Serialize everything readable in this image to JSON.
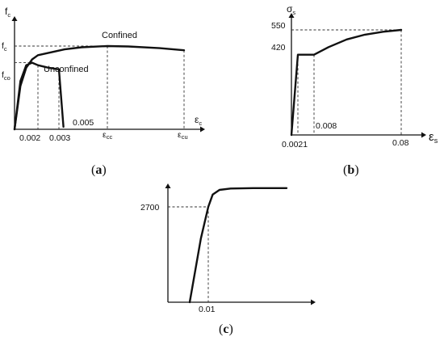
{
  "chart_data": [
    {
      "id": "a",
      "type": "line",
      "caption": "a",
      "y_axis_symbol": "f",
      "y_axis_sub": "c",
      "x_axis_symbol": "ε",
      "x_axis_sub": "c",
      "y_tick_labels": [
        {
          "base": "f",
          "sub": "c"
        },
        {
          "base": "f",
          "sub": "co"
        }
      ],
      "x_tick_labels": [
        {
          "text": "0.002"
        },
        {
          "text": "0.003"
        },
        {
          "text": "0.005"
        },
        {
          "base": "ε",
          "sub": "cc"
        },
        {
          "base": "ε",
          "sub": "cu"
        }
      ],
      "series": [
        {
          "name": "Confined",
          "x": [
            0,
            0.0005,
            0.001,
            0.0015,
            0.002,
            0.004,
            0.006,
            0.009,
            0.012,
            0.0165,
            0.02
          ],
          "y": [
            0,
            0.52,
            0.74,
            0.84,
            0.89,
            0.96,
            0.985,
            1.0,
            0.995,
            0.975,
            0.95
          ]
        },
        {
          "name": "Unconfined",
          "x": [
            0,
            0.0005,
            0.001,
            0.0015,
            0.002,
            0.0025,
            0.003,
            0.0038
          ],
          "y": [
            0,
            0.58,
            0.77,
            0.8,
            0.77,
            0.74,
            0.72,
            0.03
          ]
        }
      ]
    },
    {
      "id": "b",
      "type": "line",
      "caption": "b",
      "y_axis_symbol": "σ",
      "y_axis_sub": "s",
      "x_axis_symbol": "ε",
      "x_axis_sub": "s",
      "y_ticks": [
        420,
        550
      ],
      "x_tick_labels": [
        "0.0021",
        "0.008",
        "0.08"
      ],
      "series": [
        {
          "x": [
            0,
            0.0021,
            0.008,
            0.02,
            0.035,
            0.05,
            0.065,
            0.08
          ],
          "y": [
            0,
            420,
            420,
            460,
            500,
            525,
            540,
            550
          ]
        }
      ]
    },
    {
      "id": "c",
      "type": "line",
      "caption": "c",
      "y_ticks": [
        2700
      ],
      "x_tick_labels": [
        "0.01"
      ],
      "series": [
        {
          "x": [
            0.005,
            0.008,
            0.01,
            0.012,
            0.015,
            0.02,
            0.03,
            0.045
          ],
          "y": [
            0,
            1800,
            2700,
            3050,
            3180,
            3220,
            3230,
            3230
          ]
        }
      ]
    }
  ]
}
